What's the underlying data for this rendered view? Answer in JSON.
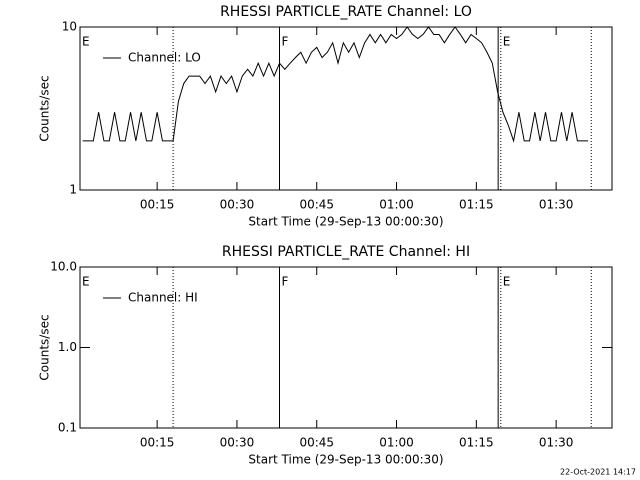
{
  "chart_data": [
    {
      "type": "line",
      "title": "RHESSI PARTICLE_RATE Channel: LO",
      "xlabel": "Start Time (29-Sep-13 00:00:30)",
      "ylabel": "Counts/sec",
      "log_y": true,
      "xlim": [
        0.5,
        100.5
      ],
      "ylim": [
        1,
        10
      ],
      "xticks": [
        {
          "value": 15,
          "label": "00:15"
        },
        {
          "value": 30,
          "label": "00:30"
        },
        {
          "value": 45,
          "label": "00:45"
        },
        {
          "value": 60,
          "label": "01:00"
        },
        {
          "value": 75,
          "label": "01:15"
        },
        {
          "value": 90,
          "label": "01:30"
        }
      ],
      "yticks": [
        1,
        10
      ],
      "x": [
        1,
        2,
        3,
        4,
        5,
        6,
        7,
        8,
        9,
        10,
        11,
        12,
        13,
        14,
        15,
        16,
        17,
        18,
        19,
        20,
        21,
        22,
        23,
        24,
        25,
        26,
        27,
        28,
        29,
        30,
        31,
        32,
        33,
        34,
        35,
        36,
        37,
        38,
        39,
        40,
        41,
        42,
        43,
        44,
        45,
        46,
        47,
        48,
        49,
        50,
        51,
        52,
        53,
        54,
        55,
        56,
        57,
        58,
        59,
        60,
        61,
        62,
        63,
        64,
        65,
        66,
        67,
        68,
        69,
        70,
        71,
        72,
        73,
        74,
        75,
        76,
        77,
        78,
        79,
        80,
        81,
        82,
        83,
        84,
        85,
        86,
        87,
        88,
        89,
        90,
        91,
        92,
        93,
        94,
        95,
        96
      ],
      "series": [
        {
          "name": "Channel: LO",
          "color": "#000000",
          "values": [
            2,
            2,
            2,
            3,
            2,
            2,
            3,
            2,
            2,
            3,
            2,
            3,
            2,
            2,
            3,
            2,
            2,
            2,
            3.5,
            4.5,
            5,
            5,
            5,
            4.5,
            5,
            4,
            5,
            4.5,
            5,
            4,
            5,
            5.5,
            5,
            6,
            5,
            6,
            5,
            6,
            5.5,
            6,
            6.5,
            7,
            6,
            7,
            7.5,
            6.5,
            7,
            8,
            6,
            8,
            7,
            8,
            6.5,
            8,
            9,
            8,
            9,
            8,
            9,
            8.5,
            9,
            10,
            9,
            8.5,
            9,
            10,
            9,
            9,
            8,
            9,
            10,
            9,
            8,
            9,
            8.5,
            8,
            7,
            6,
            4,
            3,
            2.5,
            2,
            3,
            2,
            2,
            3,
            2,
            3,
            2,
            2,
            3,
            2,
            3,
            2,
            2,
            2
          ]
        }
      ],
      "event_lines": [
        {
          "x": 18,
          "style": "dotted"
        },
        {
          "x": 38,
          "style": "solid"
        },
        {
          "x": 79.1,
          "style": "solid"
        },
        {
          "x": 79.6,
          "style": "dotted"
        },
        {
          "x": 96.6,
          "style": "dotted"
        }
      ],
      "event_labels": [
        {
          "x": 0.5,
          "label": "E"
        },
        {
          "x": 38,
          "label": "F"
        },
        {
          "x": 79.6,
          "label": "E"
        }
      ]
    },
    {
      "type": "line",
      "title": "RHESSI PARTICLE_RATE Channel: HI",
      "xlabel": "Start Time (29-Sep-13 00:00:30)",
      "ylabel": "Counts/sec",
      "log_y": true,
      "xlim": [
        0.5,
        100.5
      ],
      "ylim": [
        0.1,
        10
      ],
      "xticks": [
        {
          "value": 15,
          "label": "00:15"
        },
        {
          "value": 30,
          "label": "00:30"
        },
        {
          "value": 45,
          "label": "00:45"
        },
        {
          "value": 60,
          "label": "01:00"
        },
        {
          "value": 75,
          "label": "01:15"
        },
        {
          "value": 90,
          "label": "01:30"
        }
      ],
      "yticks": [
        {
          "value": 0.1,
          "label": "0.1"
        },
        {
          "value": 1,
          "label": "1.0"
        },
        {
          "value": 10,
          "label": "10.0"
        }
      ],
      "x": [],
      "series": [
        {
          "name": "Channel: HI",
          "color": "#000000",
          "values": []
        }
      ],
      "event_lines": [
        {
          "x": 18,
          "style": "dotted"
        },
        {
          "x": 38,
          "style": "solid"
        },
        {
          "x": 79.1,
          "style": "solid"
        },
        {
          "x": 79.6,
          "style": "dotted"
        },
        {
          "x": 96.6,
          "style": "dotted"
        }
      ],
      "event_labels": [
        {
          "x": 0.5,
          "label": "E"
        },
        {
          "x": 38,
          "label": "F"
        },
        {
          "x": 79.6,
          "label": "E"
        }
      ]
    }
  ],
  "footer": "22-Oct-2021 14:17"
}
